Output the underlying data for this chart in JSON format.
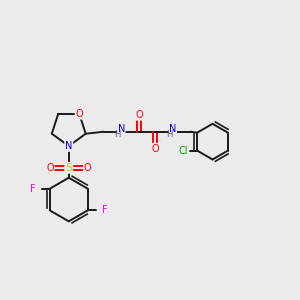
{
  "bg_color": "#ebebeb",
  "bond_color": "#1a1a1a",
  "atom_colors": {
    "O": "#ff0000",
    "N": "#0000cc",
    "S": "#cccc00",
    "F": "#ee00ee",
    "Cl": "#00aa00",
    "H": "#555577",
    "C": "#1a1a1a"
  },
  "figsize": [
    3.0,
    3.0
  ],
  "dpi": 100
}
